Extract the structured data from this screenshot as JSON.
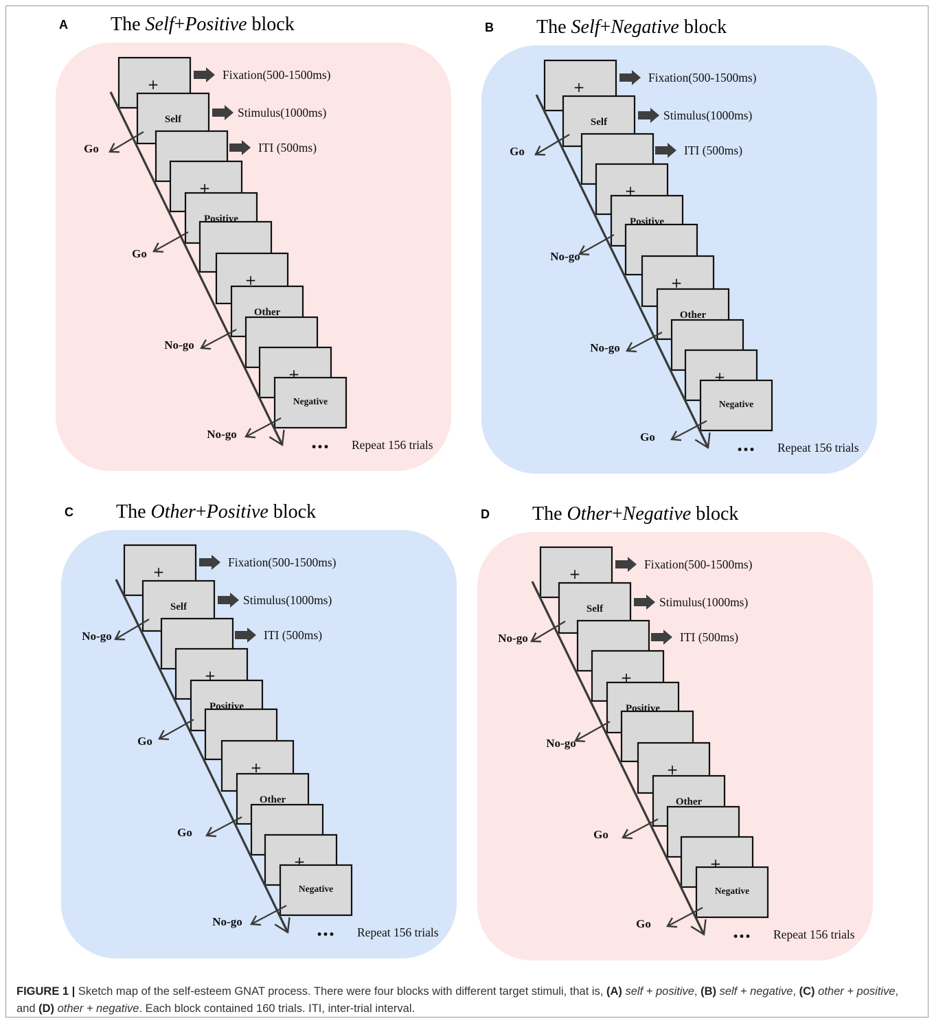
{
  "colors": {
    "pink_background": "#fde6e6",
    "blue_background": "#d6e5f9",
    "screen_fill": "#d9d9d9",
    "arrow": "#3a3a3a"
  },
  "legend": {
    "fixation": "Fixation(500-1500ms)",
    "stimulus": "Stimulus(1000ms)",
    "iti": "ITI (500ms)"
  },
  "screen_symbols": {
    "fixation": "+",
    "self": "Self",
    "positive": "Positive",
    "other": "Other",
    "negative": "Negative"
  },
  "ellipsis": "•••",
  "repeat_text": "Repeat 156 trials",
  "panels": [
    {
      "letter": "A",
      "title": {
        "prefix": "The ",
        "word1": "Self",
        "plus": "+",
        "word2": "Positive",
        "suffix": " block"
      },
      "background": "pink",
      "responses": [
        "Go",
        "Go",
        "No-go",
        "No-go"
      ]
    },
    {
      "letter": "B",
      "title": {
        "prefix": "The ",
        "word1": "Self",
        "plus": "+",
        "word2": "Negative",
        "suffix": " block"
      },
      "background": "blue",
      "responses": [
        "Go",
        "No-go",
        "No-go",
        "Go"
      ]
    },
    {
      "letter": "C",
      "title": {
        "prefix": "The ",
        "word1": "Other",
        "plus": "+",
        "word2": "Positive",
        "suffix": " block"
      },
      "background": "blue",
      "responses": [
        "No-go",
        "Go",
        "Go",
        "No-go"
      ]
    },
    {
      "letter": "D",
      "title": {
        "prefix": "The ",
        "word1": "Other",
        "plus": "+",
        "word2": "Negative",
        "suffix": " block"
      },
      "background": "pink",
      "responses": [
        "No-go",
        "No-go",
        "Go",
        "Go"
      ]
    }
  ],
  "caption": {
    "label": "FIGURE 1 |",
    "t1": " Sketch map of the self-esteem GNAT process. There were four blocks with different target stimuli, that is, ",
    "a": "(A)",
    "a_text": "self + positive",
    "sep1": ", ",
    "b": "(B)",
    "b_text": "self + negative",
    "sep2": ", ",
    "c": "(C)",
    "c_text": "other + positive",
    "sep3": ", and ",
    "d": "(D)",
    "d_text": "other + negative",
    "t2": ". Each block contained 160 trials. ITI, inter-trial interval."
  }
}
